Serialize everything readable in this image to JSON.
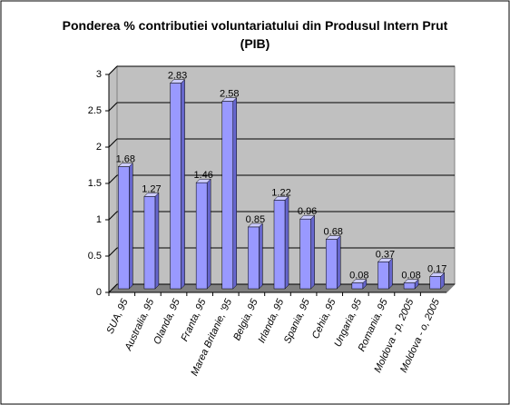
{
  "chart_data": {
    "type": "bar",
    "title": "Ponderea % contributiei voluntariatului din Produsul Intern Prut (PIB)",
    "categories": [
      "SUA, 95",
      "Australia, 95",
      "Olanda, 95",
      "Franta, 95",
      "Marea Britanie, '95",
      "Belgia, 95",
      "Irlanda, 95",
      "Spania, 95",
      "Cehia, 95",
      "Ungaria, 95",
      "Romania, 95",
      "Moldova - p, 2005",
      "Moldova - o, 2005"
    ],
    "values": [
      1.68,
      1.27,
      2.83,
      1.46,
      2.58,
      0.85,
      1.22,
      0.96,
      0.68,
      0.08,
      0.37,
      0.08,
      0.17
    ],
    "color": "#9999ff",
    "ylim": [
      0,
      3
    ],
    "yticks": [
      0,
      0.5,
      1,
      1.5,
      2,
      2.5,
      3
    ],
    "grid": true
  }
}
